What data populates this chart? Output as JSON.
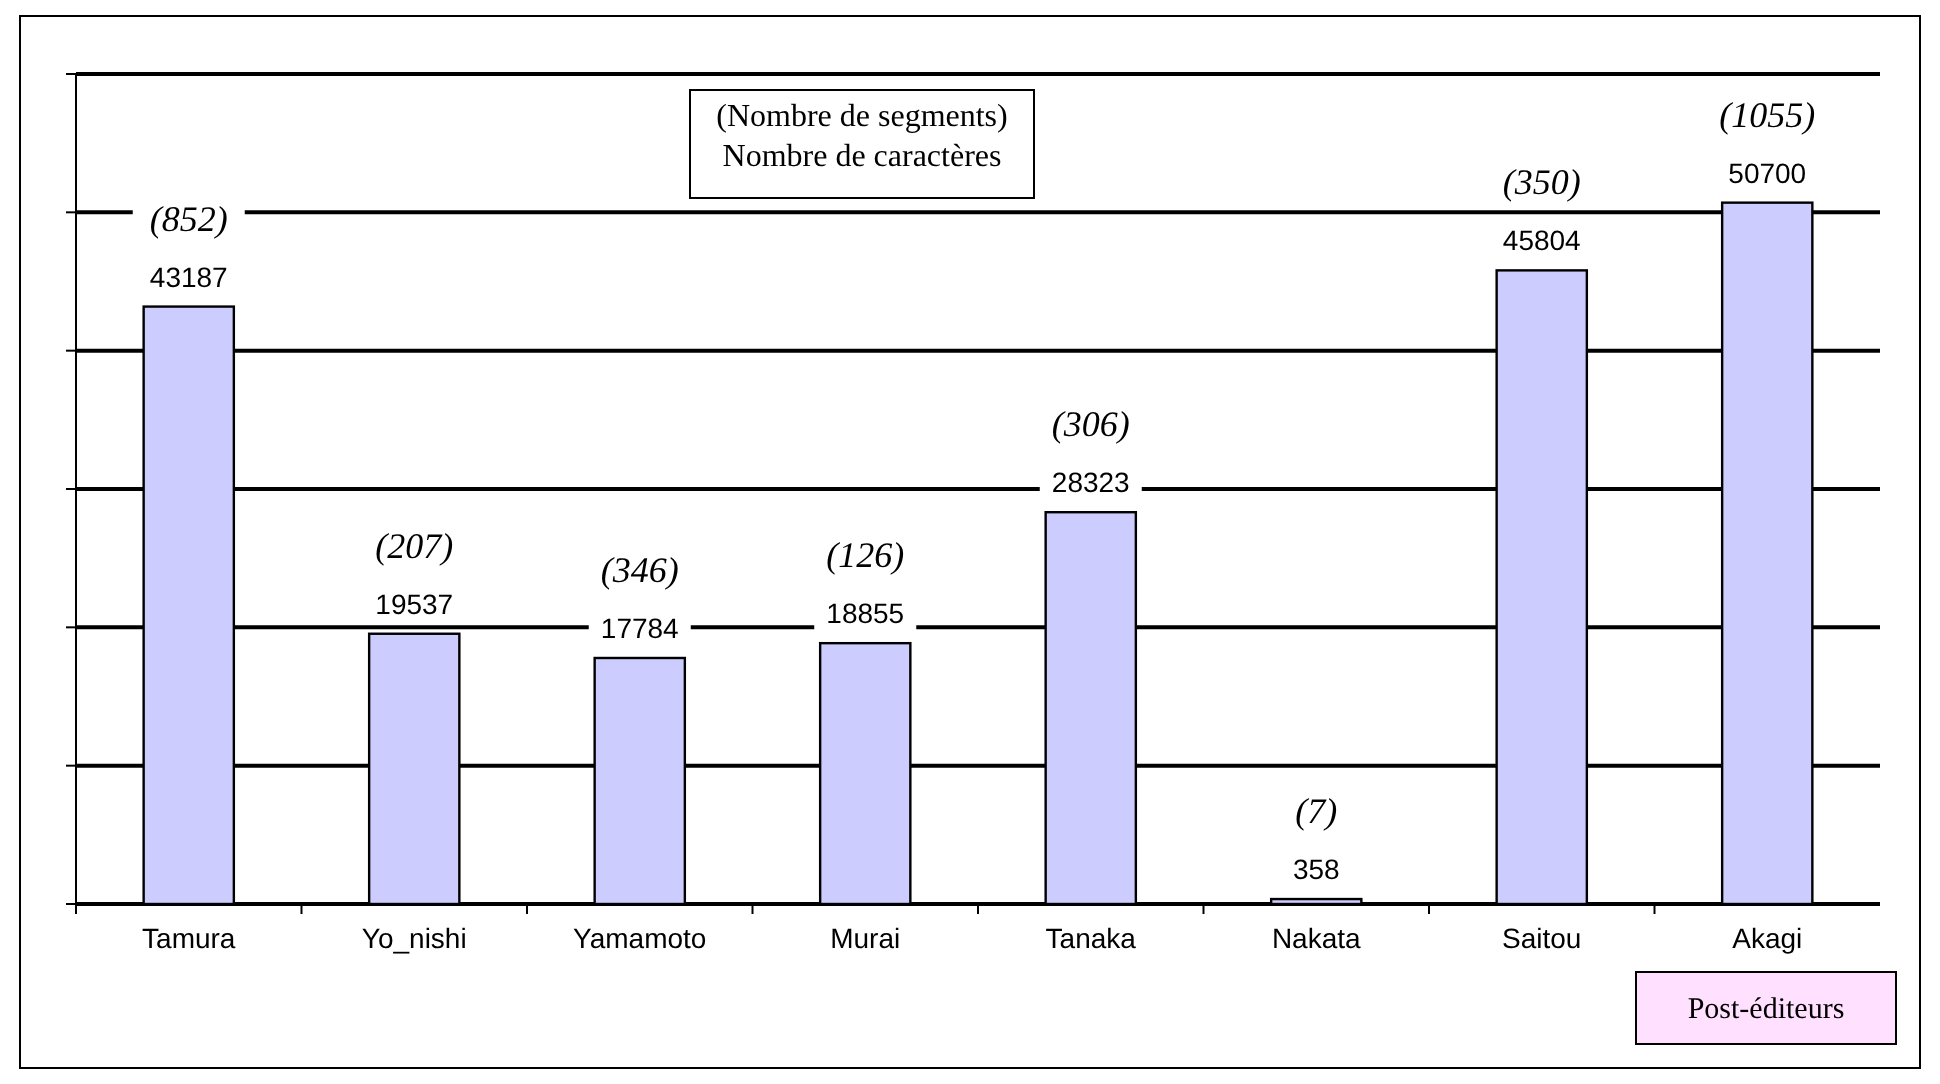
{
  "chart_data": {
    "type": "bar",
    "xlabel": "Post-éditeurs",
    "categories": [
      "Tamura",
      "Yo_nishi",
      "Yamamoto",
      "Murai",
      "Tanaka",
      "Nakata",
      "Saitou",
      "Akagi"
    ],
    "values": [
      43187,
      19537,
      17784,
      18855,
      28323,
      358,
      45804,
      50700
    ],
    "color": "#ccccff",
    "data_labels": true,
    "ylim": [
      0,
      60000
    ],
    "yticks": [
      {
        "value": 0,
        "label": null
      },
      {
        "value": 10000,
        "label": null
      },
      {
        "value": 20000,
        "label": null
      },
      {
        "value": 30000,
        "label": null
      },
      {
        "value": 40000,
        "label": null
      },
      {
        "value": 50000,
        "label": null
      },
      {
        "value": 60000,
        "label": null
      }
    ],
    "grid": "y",
    "tick_labels": "x",
    "annotations": [
      "(Nombre de segments)",
      "Nombre de caractères",
      {
        "text": "(852)",
        "x": "Tamura",
        "y": 43187
      },
      {
        "text": "(207)",
        "x": "Yo_nishi",
        "y": 19537
      },
      {
        "text": "(346)",
        "x": "Yamamoto",
        "y": 17784
      },
      {
        "text": "(126)",
        "x": "Murai",
        "y": 18855
      },
      {
        "text": "(306)",
        "x": "Tanaka",
        "y": 28323
      },
      {
        "text": "(7)",
        "x": "Nakata",
        "y": 358
      },
      {
        "text": "(350)",
        "x": "Saitou",
        "y": 45804
      },
      {
        "text": "(1055)",
        "x": "Akagi",
        "y": 50700
      }
    ]
  }
}
